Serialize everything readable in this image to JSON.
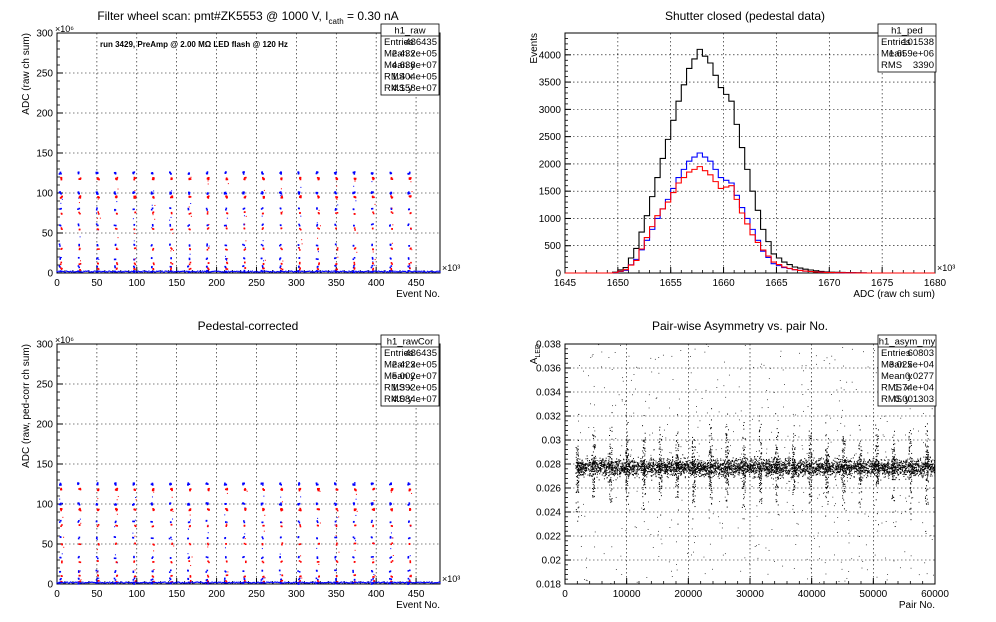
{
  "canvas_background": "#ffffff",
  "chart_data": [
    {
      "type": "scatter",
      "title_prefix": "Filter wheel scan: pmt#ZK5553 @  1000 V, I",
      "title_sub": "cath",
      "title_suffix": " = 0.30 nA",
      "annotation": "run 3429, PreAmp @ 2.00 MΩ LED flash @  120 Hz",
      "xlabel": "Event No.",
      "ylabel": "ADC (raw ch sum)",
      "x_exponent": "×10³",
      "y_exponent": "×10⁶",
      "xlim": [
        0,
        480
      ],
      "ylim": [
        0,
        300
      ],
      "xticks": [
        0,
        50,
        100,
        150,
        200,
        250,
        300,
        350,
        400,
        450
      ],
      "xtick_labels": [
        "0",
        "50",
        "100",
        "150",
        "200",
        "250",
        "300",
        "350",
        "400",
        "450"
      ],
      "yticks": [
        0,
        50,
        100,
        150,
        200,
        250,
        300
      ],
      "ytick_labels": [
        "0",
        "50",
        "100",
        "150",
        "200",
        "250",
        "300"
      ],
      "grid": true,
      "level_series": [
        {
          "color": "#0000ff",
          "levels": [
            125,
            100,
            80,
            60,
            35,
            18,
            8,
            2
          ]
        },
        {
          "color": "#ff0000",
          "levels": [
            118,
            95,
            75,
            55,
            30,
            12,
            5
          ]
        }
      ],
      "burst_period": 23,
      "stats_box": {
        "name": "h1_raw",
        "rows": [
          {
            "label": "Entries",
            "value": "486435"
          },
          {
            "label": "Mean x",
            "value": "2.432e+05"
          },
          {
            "label": "Mean y",
            "value": "4.638e+07"
          },
          {
            "label": "RMS x",
            "value": "1.404e+05"
          },
          {
            "label": "RMS y",
            "value": "4.158e+07"
          }
        ]
      }
    },
    {
      "type": "line",
      "title": "Shutter closed (pedestal data)",
      "xlabel": "ADC (raw ch sum)",
      "ylabel": "Events",
      "x_exponent": "×10³",
      "xlim": [
        1645,
        1680
      ],
      "ylim": [
        0,
        4400
      ],
      "xticks": [
        1645,
        1650,
        1655,
        1660,
        1665,
        1670,
        1675,
        1680
      ],
      "xtick_labels": [
        "1645",
        "1650",
        "1655",
        "1660",
        "1665",
        "1670",
        "1675",
        "1680"
      ],
      "yticks": [
        0,
        500,
        1000,
        1500,
        2000,
        2500,
        3000,
        3500,
        4000
      ],
      "ytick_labels": [
        "0",
        "500",
        "1000",
        "1500",
        "2000",
        "2500",
        "3000",
        "3500",
        "4000"
      ],
      "grid": true,
      "series": [
        {
          "color": "#000000",
          "x": [
            1650,
            1651,
            1652,
            1653,
            1654,
            1655,
            1656,
            1657,
            1658,
            1659,
            1660,
            1661,
            1662,
            1663,
            1664,
            1665,
            1666,
            1667,
            1668,
            1669,
            1670,
            1671,
            1672,
            1673
          ],
          "values": [
            15,
            100,
            450,
            1050,
            1750,
            2450,
            3150,
            3750,
            4100,
            3850,
            3400,
            3150,
            2300,
            1500,
            800,
            350,
            200,
            110,
            70,
            40,
            20,
            12,
            8,
            4
          ]
        },
        {
          "color": "#0000ff",
          "x": [
            1650,
            1651,
            1652,
            1653,
            1654,
            1655,
            1656,
            1657,
            1658,
            1659,
            1660,
            1661,
            1662,
            1663,
            1664,
            1665,
            1666,
            1667,
            1668,
            1669,
            1670,
            1671,
            1672,
            1673
          ],
          "values": [
            8,
            50,
            250,
            600,
            1000,
            1350,
            1750,
            2050,
            2200,
            2050,
            1750,
            1650,
            1200,
            800,
            400,
            170,
            100,
            60,
            35,
            20,
            10,
            6,
            4,
            2
          ]
        },
        {
          "color": "#ff0000",
          "x": [
            1650,
            1651,
            1652,
            1653,
            1654,
            1655,
            1656,
            1657,
            1658,
            1659,
            1660,
            1661,
            1662,
            1663,
            1664,
            1665,
            1666,
            1667,
            1668,
            1669,
            1670,
            1671,
            1672,
            1673
          ],
          "values": [
            7,
            60,
            230,
            650,
            1050,
            1300,
            1650,
            1850,
            1950,
            1800,
            1550,
            1600,
            1100,
            700,
            420,
            200,
            110,
            60,
            35,
            20,
            10,
            6,
            4,
            2
          ]
        }
      ],
      "stats_box": {
        "name": "h1_ped",
        "rows": [
          {
            "label": "Entries",
            "value": "101538"
          },
          {
            "label": "Mean",
            "value": "1.659e+06"
          },
          {
            "label": "RMS",
            "value": "3390"
          }
        ]
      }
    },
    {
      "type": "scatter",
      "title": "Pedestal-corrected",
      "xlabel": "Event No.",
      "ylabel": "ADC (raw, ped-corr ch sum)",
      "x_exponent": "×10³",
      "y_exponent": "×10⁶",
      "xlim": [
        0,
        480
      ],
      "ylim": [
        0,
        300
      ],
      "xticks": [
        0,
        50,
        100,
        150,
        200,
        250,
        300,
        350,
        400,
        450
      ],
      "xtick_labels": [
        "0",
        "50",
        "100",
        "150",
        "200",
        "250",
        "300",
        "350",
        "400",
        "450"
      ],
      "yticks": [
        0,
        50,
        100,
        150,
        200,
        250,
        300
      ],
      "ytick_labels": [
        "0",
        "50",
        "100",
        "150",
        "200",
        "250",
        "300"
      ],
      "grid": true,
      "level_series": [
        {
          "color": "#0000ff",
          "levels": [
            125,
            100,
            78,
            58,
            33,
            16,
            6,
            1
          ]
        },
        {
          "color": "#ff0000",
          "levels": [
            118,
            93,
            73,
            50,
            28,
            10,
            3
          ]
        }
      ],
      "burst_period": 23,
      "stats_box": {
        "name": "h1_rawCor",
        "rows": [
          {
            "label": "Entries",
            "value": "486435"
          },
          {
            "label": "Mean x",
            "value": "2.423e+05"
          },
          {
            "label": "Mean y",
            "value": "5.002e+07"
          },
          {
            "label": "RMS x",
            "value": "1.392e+05"
          },
          {
            "label": "RMS y",
            "value": "4.084e+07"
          }
        ]
      }
    },
    {
      "type": "scatter",
      "title": "Pair-wise Asymmetry vs. pair No.",
      "xlabel": "Pair No.",
      "ylabel": "A",
      "ylabel_sub": "LED",
      "xlim": [
        0,
        60000
      ],
      "ylim": [
        0.018,
        0.038
      ],
      "xticks": [
        0,
        10000,
        20000,
        30000,
        40000,
        50000,
        60000
      ],
      "xtick_labels": [
        "0",
        "10000",
        "20000",
        "30000",
        "40000",
        "50000",
        "60000"
      ],
      "yticks": [
        0.018,
        0.02,
        0.022,
        0.024,
        0.026,
        0.028,
        0.03,
        0.032,
        0.034,
        0.036,
        0.038
      ],
      "ytick_labels": [
        "0.018",
        "0.02",
        "0.022",
        "0.024",
        "0.026",
        "0.028",
        "0.03",
        "0.032",
        "0.034",
        "0.036",
        "0.038"
      ],
      "grid": true,
      "band_center": 0.0277,
      "band_halfwidth": 0.0006,
      "color": "#000000",
      "stats_box": {
        "name": "h1_asym_my",
        "rows": [
          {
            "label": "Entries",
            "value": "60803"
          },
          {
            "label": "Mean x",
            "value": "3.025e+04"
          },
          {
            "label": "Mean y",
            "value": "0.0277"
          },
          {
            "label": "RMS x",
            "value": "1.74e+04"
          },
          {
            "label": "RMS y",
            "value": "0.001303"
          }
        ]
      }
    }
  ]
}
